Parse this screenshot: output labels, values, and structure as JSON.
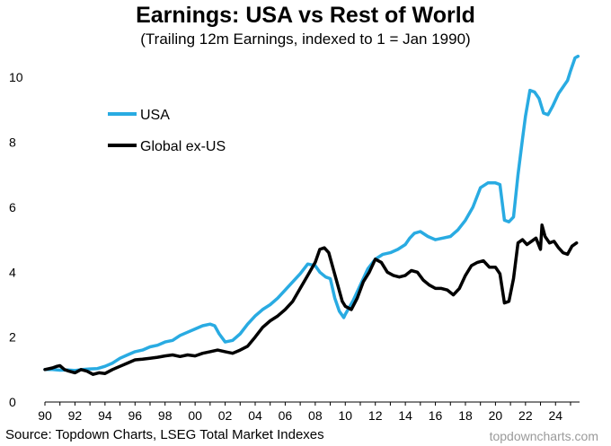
{
  "chart_data": {
    "type": "line",
    "title": "Earnings: USA vs Rest of World",
    "subtitle": "(Trailing 12m Earnings, indexed to 1 = Jan 1990)",
    "xlabel": "",
    "ylabel": "",
    "xlim": [
      1990,
      2025.6
    ],
    "ylim": [
      0,
      11
    ],
    "yticks": [
      0,
      2,
      4,
      6,
      8,
      10
    ],
    "xticks": [
      1990,
      1992,
      1994,
      1996,
      1998,
      2000,
      2002,
      2004,
      2006,
      2008,
      2010,
      2012,
      2014,
      2016,
      2018,
      2020,
      2022,
      2024
    ],
    "xtick_labels": [
      "90",
      "92",
      "94",
      "96",
      "98",
      "00",
      "02",
      "04",
      "06",
      "08",
      "10",
      "12",
      "14",
      "16",
      "18",
      "20",
      "22",
      "24"
    ],
    "legend_position": "top-left",
    "series": [
      {
        "name": "USA",
        "color": "#29abe2",
        "x": [
          1990,
          1990.5,
          1991,
          1991.5,
          1992,
          1992.5,
          1993,
          1993.5,
          1994,
          1994.5,
          1995,
          1995.5,
          1996,
          1996.5,
          1997,
          1997.5,
          1998,
          1998.5,
          1999,
          1999.5,
          2000,
          2000.5,
          2001,
          2001.3,
          2001.6,
          2002,
          2002.5,
          2003,
          2003.5,
          2004,
          2004.5,
          2005,
          2005.5,
          2006,
          2006.5,
          2007,
          2007.5,
          2008,
          2008.3,
          2008.7,
          2009,
          2009.3,
          2009.6,
          2009.9,
          2010,
          2010.5,
          2011,
          2011.5,
          2012,
          2012.5,
          2013,
          2013.5,
          2014,
          2014.3,
          2014.6,
          2015,
          2015.5,
          2016,
          2016.5,
          2017,
          2017.5,
          2018,
          2018.5,
          2019,
          2019.5,
          2020,
          2020.3,
          2020.6,
          2020.9,
          2021.2,
          2021.5,
          2021.8,
          2022,
          2022.3,
          2022.6,
          2022.9,
          2023.2,
          2023.5,
          2023.8,
          2024.2,
          2024.5,
          2024.8,
          2025,
          2025.3,
          2025.5
        ],
        "values": [
          1.0,
          1.0,
          0.98,
          0.99,
          0.97,
          1.0,
          1.02,
          1.03,
          1.1,
          1.2,
          1.35,
          1.45,
          1.55,
          1.6,
          1.7,
          1.75,
          1.85,
          1.9,
          2.05,
          2.15,
          2.25,
          2.35,
          2.4,
          2.35,
          2.1,
          1.85,
          1.9,
          2.1,
          2.4,
          2.65,
          2.85,
          3.0,
          3.2,
          3.45,
          3.7,
          3.95,
          4.25,
          4.2,
          4.0,
          3.85,
          3.8,
          3.2,
          2.8,
          2.6,
          2.7,
          3.1,
          3.6,
          4.1,
          4.4,
          4.55,
          4.6,
          4.7,
          4.85,
          5.05,
          5.2,
          5.25,
          5.1,
          5.0,
          5.05,
          5.1,
          5.3,
          5.6,
          6.0,
          6.6,
          6.75,
          6.75,
          6.7,
          5.6,
          5.55,
          5.7,
          7.0,
          8.1,
          8.8,
          9.6,
          9.55,
          9.35,
          8.9,
          8.85,
          9.1,
          9.5,
          9.7,
          9.9,
          10.2,
          10.6,
          10.65
        ]
      },
      {
        "name": "Global ex-US",
        "color": "#000000",
        "x": [
          1990,
          1990.5,
          1990.8,
          1991,
          1991.3,
          1991.6,
          1992,
          1992.4,
          1992.8,
          1993.2,
          1993.6,
          1994,
          1994.5,
          1995,
          1995.5,
          1996,
          1996.5,
          1997,
          1997.5,
          1998,
          1998.5,
          1999,
          1999.5,
          2000,
          2000.5,
          2001,
          2001.5,
          2002,
          2002.5,
          2003,
          2003.5,
          2004,
          2004.5,
          2005,
          2005.5,
          2006,
          2006.5,
          2007,
          2007.5,
          2008,
          2008.3,
          2008.6,
          2008.9,
          2009.2,
          2009.5,
          2009.8,
          2010,
          2010.4,
          2010.8,
          2011.2,
          2011.6,
          2012,
          2012.4,
          2012.8,
          2013.2,
          2013.6,
          2014,
          2014.4,
          2014.8,
          2015.2,
          2015.6,
          2016,
          2016.4,
          2016.8,
          2017.2,
          2017.6,
          2018,
          2018.4,
          2018.8,
          2019.2,
          2019.6,
          2020,
          2020.3,
          2020.6,
          2020.9,
          2021.2,
          2021.5,
          2021.8,
          2022.1,
          2022.4,
          2022.7,
          2023,
          2023.1,
          2023.3,
          2023.6,
          2023.9,
          2024.2,
          2024.5,
          2024.8,
          2025.1,
          2025.4
        ],
        "values": [
          1.0,
          1.05,
          1.1,
          1.12,
          1.0,
          0.95,
          0.9,
          1.0,
          0.95,
          0.85,
          0.9,
          0.88,
          1.0,
          1.1,
          1.2,
          1.3,
          1.32,
          1.35,
          1.38,
          1.42,
          1.45,
          1.4,
          1.45,
          1.42,
          1.5,
          1.55,
          1.6,
          1.55,
          1.5,
          1.6,
          1.72,
          2.0,
          2.3,
          2.5,
          2.65,
          2.85,
          3.1,
          3.5,
          3.9,
          4.3,
          4.7,
          4.75,
          4.6,
          4.1,
          3.6,
          3.1,
          2.95,
          2.85,
          3.2,
          3.7,
          4.0,
          4.4,
          4.3,
          4.0,
          3.9,
          3.85,
          3.9,
          4.05,
          4.0,
          3.75,
          3.6,
          3.5,
          3.5,
          3.45,
          3.3,
          3.5,
          3.9,
          4.2,
          4.3,
          4.35,
          4.15,
          4.15,
          3.95,
          3.05,
          3.1,
          3.8,
          4.9,
          5.0,
          4.85,
          4.95,
          5.05,
          4.7,
          5.45,
          5.1,
          4.9,
          4.95,
          4.75,
          4.6,
          4.55,
          4.8,
          4.9
        ]
      }
    ]
  },
  "footer": {
    "source": "Source: Topdown Charts, LSEG Total Market Indexes",
    "brand": "topdowncharts.com"
  }
}
